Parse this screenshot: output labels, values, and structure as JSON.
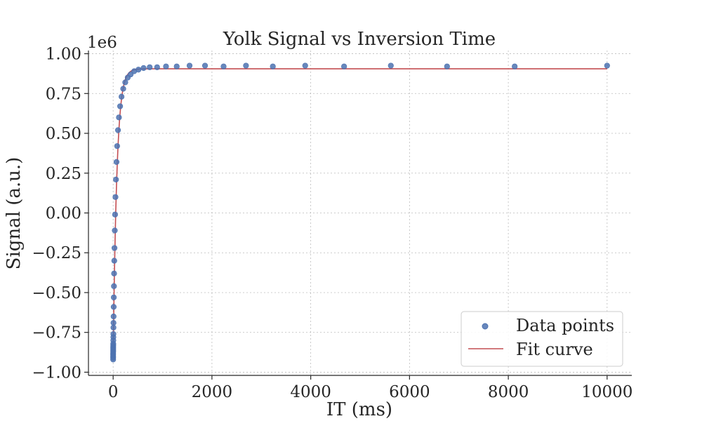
{
  "chart_data": {
    "type": "scatter",
    "title": "Yolk Signal vs Inversion Time",
    "xlabel": "IT (ms)",
    "ylabel": "Signal (a.u.)",
    "y_offset_label": "1e6",
    "xlim": [
      -500,
      10500
    ],
    "ylim": [
      -1.02,
      1.02
    ],
    "xticks": [
      0,
      2000,
      4000,
      6000,
      8000,
      10000
    ],
    "xtick_labels": [
      "0",
      "2000",
      "4000",
      "6000",
      "8000",
      "10000"
    ],
    "yticks": [
      1.0,
      0.75,
      0.5,
      0.25,
      0.0,
      -0.25,
      -0.5,
      -0.75,
      -1.0
    ],
    "ytick_labels": [
      "1.00",
      "0.75",
      "0.50",
      "0.25",
      "0.00",
      "−0.25",
      "−0.50",
      "−0.75",
      "−1.00"
    ],
    "grid": true,
    "legend_position": "lower-right",
    "legend": [
      "Data points",
      "Fit curve"
    ],
    "colors": {
      "points": "#4c72b0",
      "fit": "#c44e52"
    },
    "series": [
      {
        "name": "Data points",
        "kind": "scatter",
        "x": [
          0,
          0,
          0,
          0,
          0,
          1,
          1,
          1,
          1,
          2,
          2,
          3,
          4,
          5,
          6,
          7,
          9,
          11,
          13,
          16,
          19,
          23,
          27,
          33,
          39,
          47,
          57,
          68,
          81,
          98,
          117,
          141,
          170,
          204,
          245,
          295,
          354,
          426,
          512,
          616,
          740,
          890,
          1070,
          1287,
          1547,
          1860,
          2236,
          2689,
          3233,
          3888,
          4675,
          5622,
          6760,
          8129,
          10000
        ],
        "y": [
          -0.92,
          -0.91,
          -0.9,
          -0.89,
          -0.88,
          -0.87,
          -0.86,
          -0.85,
          -0.84,
          -0.83,
          -0.82,
          -0.8,
          -0.78,
          -0.76,
          -0.72,
          -0.69,
          -0.65,
          -0.59,
          -0.53,
          -0.46,
          -0.38,
          -0.3,
          -0.22,
          -0.11,
          -0.01,
          0.1,
          0.21,
          0.32,
          0.42,
          0.52,
          0.6,
          0.67,
          0.73,
          0.78,
          0.82,
          0.85,
          0.87,
          0.89,
          0.9,
          0.91,
          0.915,
          0.915,
          0.92,
          0.92,
          0.925,
          0.925,
          0.92,
          0.925,
          0.92,
          0.925,
          0.92,
          0.925,
          0.92,
          0.92,
          0.925
        ]
      },
      {
        "name": "Fit curve",
        "kind": "line",
        "model": {
          "A": 0.905,
          "B": 1.815,
          "T": 75
        }
      }
    ]
  }
}
